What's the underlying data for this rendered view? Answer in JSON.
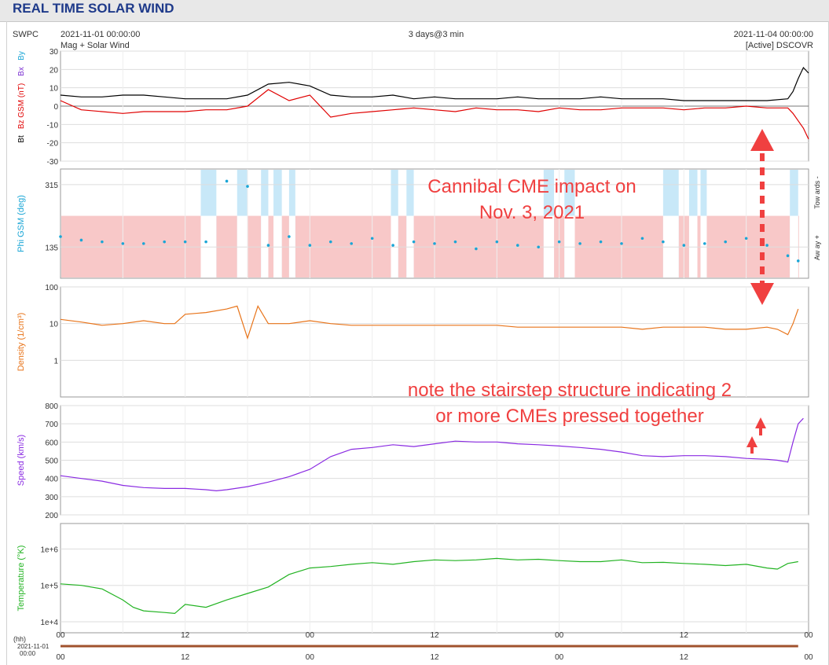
{
  "page": {
    "title": "REAL TIME SOLAR WIND"
  },
  "info": {
    "source": "SWPC",
    "start": "2021-11-01 00:00:00",
    "end": "2021-11-04 00:00:00",
    "subtitle": "Mag + Solar Wind",
    "span": "3 days@3 min",
    "spacecraft": "[Active] DSCOVR"
  },
  "colors": {
    "bt": "#000000",
    "bz": "#e00000",
    "bx": "#7b2fd1",
    "by": "#1aa6d6",
    "phi": "#1aa6d6",
    "density": "#e8741a",
    "speed": "#8a2be2",
    "temperature": "#22b322",
    "away_band": "#f8c8c8",
    "toward_band": "#c8e8f8",
    "annotation": "#f04040",
    "time_bar": "#a0522d"
  },
  "annotations": {
    "cme_line1": "Cannibal CME impact on",
    "cme_line2": "Nov. 3, 2021",
    "stair_line1": "note the stairstep structure indicating 2",
    "stair_line2": "or more CMEs pressed together"
  },
  "time_axis": {
    "hh_label": "(hh)",
    "date_label": "2021-11-01",
    "time_label": "00:00",
    "tick_labels": [
      "00",
      "12",
      "00",
      "12",
      "00",
      "12",
      "00"
    ]
  },
  "chart_data": [
    {
      "type": "line",
      "panel": "magnetic field",
      "ylabel_parts": [
        "Bt",
        "Bz GSM (nT)",
        "Bx",
        "By"
      ],
      "ylim": [
        -30,
        30
      ],
      "yticks": [
        30,
        20,
        10,
        0,
        -10,
        -20,
        -30
      ],
      "x_hours": [
        0,
        2,
        4,
        6,
        8,
        10,
        12,
        14,
        16,
        18,
        20,
        22,
        24,
        26,
        28,
        30,
        32,
        34,
        36,
        38,
        40,
        42,
        44,
        46,
        48,
        50,
        52,
        54,
        56,
        58,
        60,
        62,
        64,
        66,
        68,
        70,
        70.5,
        71,
        71.5,
        72
      ],
      "series": [
        {
          "name": "Bt",
          "values": [
            6,
            5,
            5,
            6,
            6,
            5,
            4,
            4,
            4,
            6,
            12,
            13,
            11,
            6,
            5,
            5,
            6,
            4,
            5,
            4,
            4,
            4,
            5,
            4,
            4,
            4,
            5,
            4,
            4,
            4,
            3,
            3,
            3,
            3,
            3,
            4,
            8,
            15,
            21,
            18
          ]
        },
        {
          "name": "Bz GSM",
          "values": [
            3,
            -2,
            -3,
            -4,
            -3,
            -3,
            -3,
            -2,
            -2,
            0,
            9,
            3,
            6,
            -6,
            -4,
            -3,
            -2,
            -1,
            -2,
            -3,
            -1,
            -2,
            -2,
            -3,
            -1,
            -2,
            -2,
            -1,
            -1,
            -1,
            -2,
            -1,
            -1,
            0,
            -1,
            -1,
            -4,
            -8,
            -12,
            -18
          ]
        }
      ]
    },
    {
      "type": "scatter",
      "panel": "phi",
      "ylabel": "Phi GSM (deg)",
      "ylim": [
        45,
        360
      ],
      "yticks": [
        315,
        135
      ],
      "right_labels": [
        "Tow ards -",
        "Aw ay +"
      ],
      "x_hours": [
        0,
        2,
        4,
        6,
        8,
        10,
        12,
        14,
        16,
        18,
        20,
        22,
        24,
        26,
        28,
        30,
        32,
        34,
        36,
        38,
        40,
        42,
        44,
        46,
        48,
        50,
        52,
        54,
        56,
        58,
        60,
        62,
        64,
        66,
        68,
        70,
        71
      ],
      "values": [
        165,
        155,
        150,
        145,
        145,
        150,
        150,
        150,
        325,
        310,
        140,
        165,
        140,
        150,
        145,
        160,
        140,
        150,
        145,
        150,
        130,
        150,
        140,
        135,
        150,
        145,
        150,
        145,
        160,
        150,
        140,
        145,
        150,
        160,
        140,
        110,
        95
      ],
      "toward_intervals": [
        [
          13.5,
          15
        ],
        [
          17,
          18
        ],
        [
          19.3,
          20
        ],
        [
          20.5,
          21.3
        ],
        [
          22,
          22.6
        ],
        [
          31.8,
          32.5
        ],
        [
          33.3,
          34
        ],
        [
          46.5,
          47.5
        ],
        [
          48.5,
          49.5
        ],
        [
          58,
          59.5
        ],
        [
          60.5,
          61.3
        ],
        [
          61.6,
          62.2
        ],
        [
          70.2,
          71
        ]
      ]
    },
    {
      "type": "line",
      "panel": "density",
      "ylabel": "Density (1/cm³)",
      "ylog": true,
      "ylim": [
        0.1,
        100
      ],
      "yticks": [
        100,
        10,
        1
      ],
      "x_hours": [
        0,
        2,
        4,
        6,
        8,
        10,
        11,
        12,
        14,
        16,
        17,
        18,
        19,
        20,
        22,
        24,
        26,
        28,
        30,
        32,
        34,
        36,
        38,
        40,
        42,
        44,
        46,
        48,
        50,
        52,
        54,
        56,
        58,
        60,
        62,
        64,
        66,
        68,
        69,
        70,
        70.5,
        71
      ],
      "values": [
        13,
        11,
        9,
        10,
        12,
        10,
        10,
        18,
        20,
        25,
        30,
        4,
        30,
        10,
        10,
        12,
        10,
        9,
        9,
        9,
        9,
        9,
        9,
        9,
        9,
        8,
        8,
        8,
        8,
        8,
        8,
        7,
        8,
        8,
        8,
        7,
        7,
        8,
        7,
        5,
        10,
        25
      ]
    },
    {
      "type": "line",
      "panel": "speed",
      "ylabel": "Speed (km/s)",
      "ylim": [
        200,
        800
      ],
      "yticks": [
        800,
        700,
        600,
        500,
        400,
        300,
        200
      ],
      "x_hours": [
        0,
        2,
        4,
        6,
        8,
        10,
        12,
        14,
        15,
        16,
        18,
        20,
        22,
        24,
        26,
        28,
        30,
        32,
        34,
        36,
        38,
        40,
        42,
        44,
        46,
        48,
        50,
        52,
        54,
        56,
        58,
        60,
        62,
        64,
        66,
        68,
        69,
        70,
        70.5,
        71,
        71.5
      ],
      "values": [
        415,
        400,
        385,
        362,
        350,
        345,
        345,
        338,
        332,
        338,
        355,
        380,
        410,
        450,
        520,
        560,
        570,
        585,
        575,
        590,
        605,
        600,
        600,
        590,
        585,
        578,
        570,
        560,
        545,
        525,
        520,
        525,
        525,
        520,
        510,
        505,
        500,
        490,
        600,
        700,
        730
      ]
    },
    {
      "type": "line",
      "panel": "temperature",
      "ylabel": "Temperature (°K)",
      "ylog": true,
      "ylim": [
        5000,
        5000000
      ],
      "yticks": [
        1000000,
        100000,
        10000
      ],
      "ytick_labels": [
        "1e+6",
        "1e+5",
        "1e+4"
      ],
      "x_hours": [
        0,
        2,
        4,
        6,
        7,
        8,
        10,
        11,
        12,
        14,
        16,
        18,
        20,
        22,
        24,
        26,
        28,
        30,
        32,
        34,
        36,
        38,
        40,
        42,
        44,
        46,
        48,
        50,
        52,
        54,
        56,
        58,
        60,
        62,
        64,
        66,
        68,
        69,
        70,
        71
      ],
      "values": [
        110000,
        100000,
        80000,
        40000,
        25000,
        20000,
        18000,
        17000,
        30000,
        25000,
        40000,
        60000,
        90000,
        200000,
        300000,
        330000,
        380000,
        420000,
        380000,
        450000,
        500000,
        480000,
        500000,
        550000,
        500000,
        520000,
        480000,
        450000,
        450000,
        500000,
        420000,
        430000,
        400000,
        380000,
        350000,
        380000,
        300000,
        280000,
        400000,
        450000
      ]
    }
  ]
}
